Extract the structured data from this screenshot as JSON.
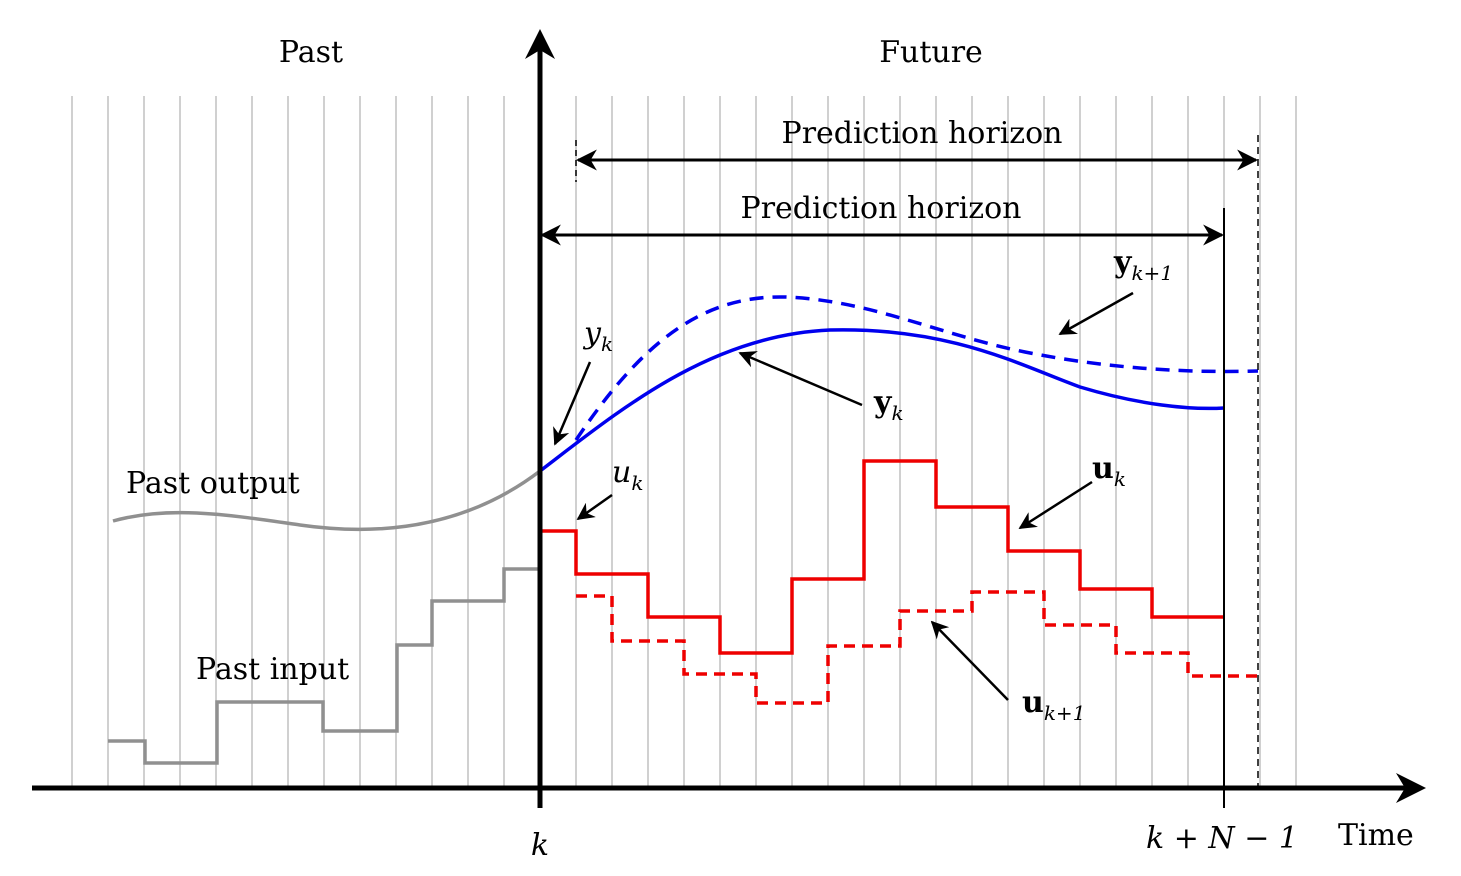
{
  "regions": {
    "past": "Past",
    "future": "Future"
  },
  "horizons": {
    "shifted": "Prediction horizon",
    "current": "Prediction horizon"
  },
  "labels": {
    "past_output": "Past output",
    "past_input": "Past input",
    "time": "Time"
  },
  "ticks": {
    "k": "k",
    "k_end": "k + N − 1"
  },
  "annotations": {
    "y_scalar": {
      "base": "y",
      "sub": "k"
    },
    "u_scalar": {
      "base": "u",
      "sub": "k"
    },
    "y_vec": {
      "base": "y",
      "sub": "k"
    },
    "y_vec_next": {
      "base": "y",
      "sub": "k+1"
    },
    "u_vec": {
      "base": "u",
      "sub": "k"
    },
    "u_vec_next": {
      "base": "u",
      "sub": "k+1"
    }
  },
  "colors": {
    "prediction": "#0000ee",
    "input": "#ee0000",
    "past": "#909090",
    "grid": "#c0c0c0",
    "axis": "#000000"
  }
}
